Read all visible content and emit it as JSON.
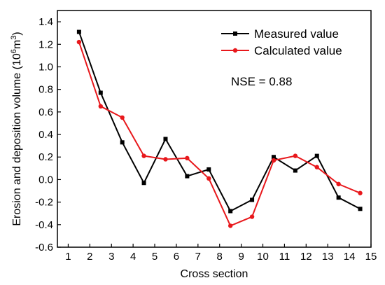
{
  "chart_data": {
    "type": "line",
    "xlabel": "Cross section",
    "ylabel": "Erosion and deposition volume (10",
    "ylabel_sup": "6",
    "ylabel_unit": "m",
    "ylabel_sup2": "3",
    "ylabel_close": ")",
    "xlim": [
      0.5,
      15
    ],
    "ylim": [
      -0.6,
      1.5
    ],
    "xticks": [
      1,
      2,
      3,
      4,
      5,
      6,
      7,
      8,
      9,
      10,
      11,
      12,
      13,
      14,
      15
    ],
    "yticks": [
      "-0.6",
      "-0.4",
      "-0.2",
      "0.0",
      "0.2",
      "0.4",
      "0.6",
      "0.8",
      "1.0",
      "1.2",
      "1.4"
    ],
    "ytick_values": [
      -0.6,
      -0.4,
      -0.2,
      0.0,
      0.2,
      0.4,
      0.6,
      0.8,
      1.0,
      1.2,
      1.4
    ],
    "grid": false,
    "legend_position": "top-right",
    "annotation": "NSE = 0.88",
    "x": [
      1.5,
      2.5,
      3.5,
      4.5,
      5.5,
      6.5,
      7.5,
      8.5,
      9.5,
      10.5,
      11.5,
      12.5,
      13.5,
      14.5
    ],
    "series": [
      {
        "name": "Measured value",
        "color": "#000000",
        "marker": "square",
        "values": [
          1.31,
          0.77,
          0.33,
          -0.03,
          0.36,
          0.03,
          0.09,
          -0.28,
          -0.18,
          0.2,
          0.08,
          0.21,
          -0.16,
          -0.26
        ]
      },
      {
        "name": "Calculated value",
        "color": "#e8181c",
        "marker": "circle",
        "values": [
          1.22,
          0.65,
          0.55,
          0.21,
          0.18,
          0.19,
          0.01,
          -0.41,
          -0.33,
          0.17,
          0.21,
          0.11,
          -0.04,
          -0.12
        ]
      }
    ]
  }
}
